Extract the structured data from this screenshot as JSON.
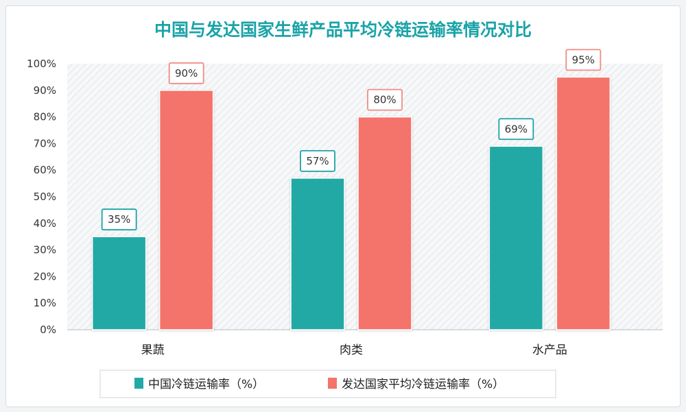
{
  "chart_data": {
    "type": "bar",
    "title": "中国与发达国家生鲜产品平均冷链运输率情况对比",
    "categories": [
      "果蔬",
      "肉类",
      "水产品"
    ],
    "series": [
      {
        "name": "中国冷链运输率（%）",
        "values": [
          35,
          57,
          69
        ],
        "color": "#22a9a6"
      },
      {
        "name": "发达国家平均冷链运输率（%）",
        "values": [
          90,
          80,
          95
        ],
        "color": "#f4736b"
      }
    ],
    "ylim": [
      0,
      100
    ],
    "yticks": [
      "0%",
      "10%",
      "20%",
      "30%",
      "40%",
      "50%",
      "60%",
      "70%",
      "80%",
      "90%",
      "100%"
    ],
    "data_labels": [
      [
        "35%",
        "57%",
        "69%"
      ],
      [
        "90%",
        "80%",
        "95%"
      ]
    ],
    "legend": "bottom",
    "grid": false,
    "title_color": "#1aa3a8"
  }
}
